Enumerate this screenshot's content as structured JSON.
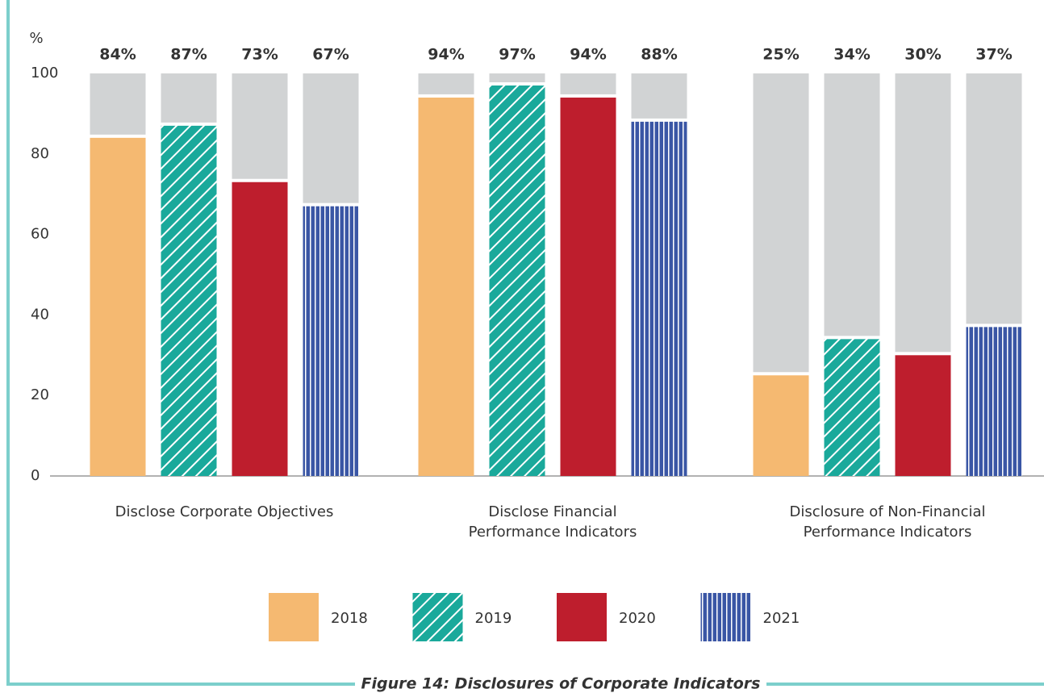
{
  "chart_data": {
    "type": "bar",
    "caption": "Figure 14: Disclosures of Corporate Indicators",
    "ylabel": "%",
    "categories": [
      [
        "Disclose Corporate Objectives"
      ],
      [
        "Disclose Financial",
        "Performance Indicators"
      ],
      [
        "Disclosure of Non-Financial",
        "Performance Indicators"
      ]
    ],
    "series": [
      {
        "name": "2018",
        "color": "#f5b971",
        "pattern": "solid",
        "values": [
          84,
          94,
          25
        ],
        "value_labels": [
          "84%",
          "94%",
          "25%"
        ]
      },
      {
        "name": "2019",
        "color": "#1aa99b",
        "pattern": "diagonal",
        "values": [
          87,
          97,
          34
        ],
        "value_labels": [
          "87%",
          "97%",
          "34%"
        ]
      },
      {
        "name": "2020",
        "color": "#be1e2d",
        "pattern": "solid",
        "values": [
          73,
          94,
          30
        ],
        "value_labels": [
          "73%",
          "94%",
          "30%"
        ]
      },
      {
        "name": "2021",
        "color": "#3a56a5",
        "pattern": "vertical",
        "values": [
          67,
          88,
          37
        ],
        "value_labels": [
          "67%",
          "88%",
          "37%"
        ]
      }
    ],
    "ylim": [
      0,
      100
    ],
    "yticks": [
      0,
      20,
      40,
      60,
      80,
      100
    ],
    "grid": false,
    "legend": "bottom"
  }
}
